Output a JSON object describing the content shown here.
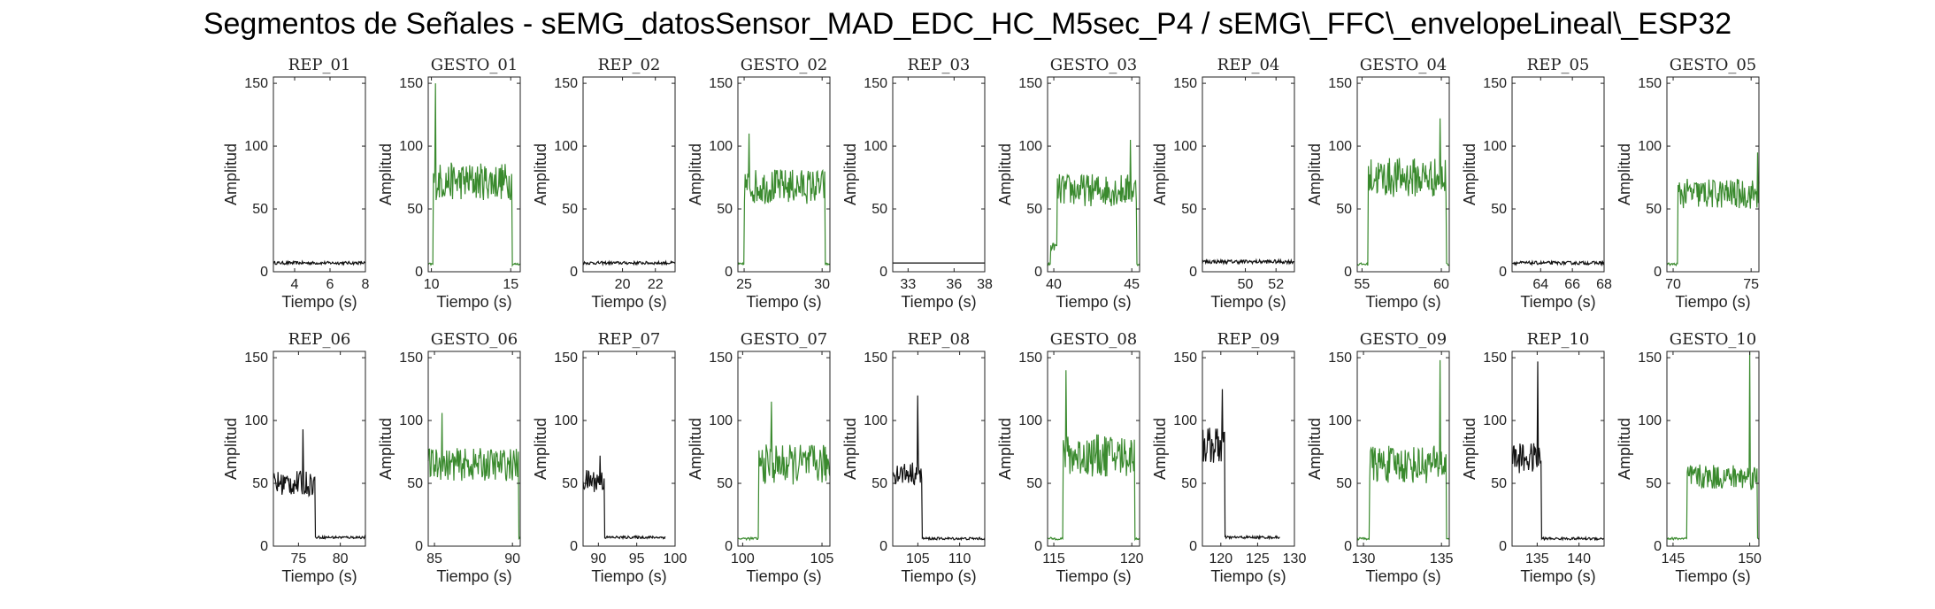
{
  "title": "Segmentos de Señales - sEMG_datosSensor_MAD_EDC_HC_M5sec_P4 / sEMG\\_FFC\\_envelopeLineal\\_ESP32",
  "colors": {
    "rep": "#111111",
    "gesto": "#3a8a2e"
  },
  "chart_data": [
    {
      "type": "line",
      "title": "REP_01",
      "xlabel": "Tiempo (s)",
      "ylabel": "Amplitud",
      "xlim": [
        2.8,
        8
      ],
      "ylim": [
        0,
        155
      ],
      "xticks": [
        4,
        6,
        8
      ],
      "yticks": [
        0,
        50,
        100,
        150
      ],
      "series": [
        {
          "kind": "rep",
          "pattern": "flat",
          "level": 7,
          "noise": 1.2,
          "x": [
            2.8,
            8
          ]
        }
      ]
    },
    {
      "type": "line",
      "title": "GESTO_01",
      "xlabel": "Tiempo (s)",
      "ylabel": "Amplitud",
      "xlim": [
        9.8,
        15.6
      ],
      "ylim": [
        0,
        155
      ],
      "xticks": [
        10,
        15
      ],
      "yticks": [
        0,
        50,
        100,
        150
      ],
      "series": [
        {
          "kind": "gesto",
          "pattern": "burst",
          "x": [
            9.8,
            15.6
          ],
          "t0": 10.1,
          "t1": 15.1,
          "level": 72,
          "noise": 15,
          "peak": [
            10.25,
            150
          ]
        }
      ]
    },
    {
      "type": "line",
      "title": "REP_02",
      "xlabel": "Tiempo (s)",
      "ylabel": "Amplitud",
      "xlim": [
        17.6,
        23.2
      ],
      "ylim": [
        0,
        155
      ],
      "xticks": [
        20,
        22
      ],
      "yticks": [
        0,
        50,
        100,
        150
      ],
      "series": [
        {
          "kind": "rep",
          "pattern": "flat",
          "level": 7,
          "noise": 1.2,
          "x": [
            17.6,
            23.2
          ]
        }
      ]
    },
    {
      "type": "line",
      "title": "GESTO_02",
      "xlabel": "Tiempo (s)",
      "ylabel": "Amplitud",
      "xlim": [
        24.6,
        30.5
      ],
      "ylim": [
        0,
        155
      ],
      "xticks": [
        25,
        30
      ],
      "yticks": [
        0,
        50,
        100,
        150
      ],
      "series": [
        {
          "kind": "gesto",
          "pattern": "burst",
          "x": [
            24.6,
            30.5
          ],
          "t0": 25.0,
          "t1": 30.2,
          "level": 68,
          "noise": 14,
          "peak": [
            25.3,
            110
          ]
        }
      ]
    },
    {
      "type": "line",
      "title": "REP_03",
      "xlabel": "Tiempo (s)",
      "ylabel": "Amplitud",
      "xlim": [
        32,
        38
      ],
      "ylim": [
        0,
        155
      ],
      "xticks": [
        33,
        36,
        38
      ],
      "yticks": [
        0,
        50,
        100,
        150
      ],
      "series": [
        {
          "kind": "rep",
          "pattern": "flat",
          "level": 7,
          "noise": 0,
          "x": [
            32,
            38
          ]
        }
      ]
    },
    {
      "type": "line",
      "title": "GESTO_03",
      "xlabel": "Tiempo (s)",
      "ylabel": "Amplitud",
      "xlim": [
        39.6,
        45.5
      ],
      "ylim": [
        0,
        155
      ],
      "xticks": [
        40,
        45
      ],
      "yticks": [
        0,
        50,
        100,
        150
      ],
      "series": [
        {
          "kind": "gesto",
          "pattern": "burst",
          "x": [
            39.6,
            45.5
          ],
          "t0": 40.2,
          "t1": 45.3,
          "level": 65,
          "noise": 13,
          "peak": [
            44.9,
            105
          ],
          "pre": 20
        }
      ]
    },
    {
      "type": "line",
      "title": "REP_04",
      "xlabel": "Tiempo (s)",
      "ylabel": "Amplitud",
      "xlim": [
        47.2,
        53.2
      ],
      "ylim": [
        0,
        155
      ],
      "xticks": [
        50,
        52
      ],
      "yticks": [
        0,
        50,
        100,
        150
      ],
      "series": [
        {
          "kind": "rep",
          "pattern": "flat",
          "level": 8,
          "noise": 1.5,
          "x": [
            47.2,
            53.2
          ]
        }
      ]
    },
    {
      "type": "line",
      "title": "GESTO_04",
      "xlabel": "Tiempo (s)",
      "ylabel": "Amplitud",
      "xlim": [
        54.7,
        60.5
      ],
      "ylim": [
        0,
        155
      ],
      "xticks": [
        55,
        60
      ],
      "yticks": [
        0,
        50,
        100,
        150
      ],
      "series": [
        {
          "kind": "gesto",
          "pattern": "burst",
          "x": [
            54.7,
            60.5
          ],
          "t0": 55.4,
          "t1": 60.3,
          "level": 75,
          "noise": 16,
          "peak": [
            59.9,
            122
          ]
        }
      ]
    },
    {
      "type": "line",
      "title": "REP_05",
      "xlabel": "Tiempo (s)",
      "ylabel": "Amplitud",
      "xlim": [
        62.2,
        68
      ],
      "ylim": [
        0,
        155
      ],
      "xticks": [
        64,
        66,
        68
      ],
      "yticks": [
        0,
        50,
        100,
        150
      ],
      "series": [
        {
          "kind": "rep",
          "pattern": "flat",
          "level": 7,
          "noise": 1.3,
          "x": [
            62.2,
            68
          ]
        }
      ]
    },
    {
      "type": "line",
      "title": "GESTO_05",
      "xlabel": "Tiempo (s)",
      "ylabel": "Amplitud",
      "xlim": [
        69.6,
        75.5
      ],
      "ylim": [
        0,
        155
      ],
      "xticks": [
        70,
        75
      ],
      "yticks": [
        0,
        50,
        100,
        150
      ],
      "series": [
        {
          "kind": "gesto",
          "pattern": "burst",
          "x": [
            69.6,
            75.5
          ],
          "t0": 70.3,
          "t1": 75.5,
          "level": 62,
          "noise": 12,
          "peak": [
            75.4,
            95
          ]
        }
      ]
    },
    {
      "type": "line",
      "title": "REP_06",
      "xlabel": "Tiempo (s)",
      "ylabel": "Amplitud",
      "xlim": [
        72,
        83
      ],
      "ylim": [
        0,
        155
      ],
      "xticks": [
        75,
        80
      ],
      "yticks": [
        0,
        50,
        100,
        150
      ],
      "series": [
        {
          "kind": "rep",
          "pattern": "decay",
          "x": [
            72,
            83
          ],
          "t1": 77,
          "level": 50,
          "noise": 10,
          "peak": [
            75.5,
            93
          ],
          "tail": 7
        }
      ]
    },
    {
      "type": "line",
      "title": "GESTO_06",
      "xlabel": "Tiempo (s)",
      "ylabel": "Amplitud",
      "xlim": [
        84.6,
        90.5
      ],
      "ylim": [
        0,
        155
      ],
      "xticks": [
        85,
        90
      ],
      "yticks": [
        0,
        50,
        100,
        150
      ],
      "series": [
        {
          "kind": "gesto",
          "pattern": "burst",
          "x": [
            84.6,
            90.5
          ],
          "t0": 84.6,
          "t1": 90.4,
          "level": 65,
          "noise": 13,
          "peak": [
            85.5,
            106
          ]
        }
      ]
    },
    {
      "type": "line",
      "title": "REP_07",
      "xlabel": "Tiempo (s)",
      "ylabel": "Amplitud",
      "xlim": [
        88,
        100
      ],
      "ylim": [
        0,
        155
      ],
      "xticks": [
        90,
        95,
        100
      ],
      "yticks": [
        0,
        50,
        100,
        150
      ],
      "series": [
        {
          "kind": "rep",
          "pattern": "decay",
          "x": [
            88,
            98.7
          ],
          "t1": 90.8,
          "level": 52,
          "noise": 9,
          "peak": [
            90.2,
            72
          ],
          "tail": 7
        }
      ]
    },
    {
      "type": "line",
      "title": "GESTO_07",
      "xlabel": "Tiempo (s)",
      "ylabel": "Amplitud",
      "xlim": [
        99.7,
        105.5
      ],
      "ylim": [
        0,
        155
      ],
      "xticks": [
        100,
        105
      ],
      "yticks": [
        0,
        50,
        100,
        150
      ],
      "series": [
        {
          "kind": "gesto",
          "pattern": "burst",
          "x": [
            99.7,
            105.5
          ],
          "t0": 101.0,
          "t1": 105.5,
          "level": 65,
          "noise": 16,
          "peak": [
            101.8,
            115
          ]
        }
      ]
    },
    {
      "type": "line",
      "title": "REP_08",
      "xlabel": "Tiempo (s)",
      "ylabel": "Amplitud",
      "xlim": [
        102,
        113
      ],
      "ylim": [
        0,
        155
      ],
      "xticks": [
        105,
        110
      ],
      "yticks": [
        0,
        50,
        100,
        150
      ],
      "series": [
        {
          "kind": "rep",
          "pattern": "decay",
          "x": [
            102,
            113
          ],
          "t1": 105.5,
          "level": 58,
          "noise": 9,
          "peak": [
            105.0,
            120
          ],
          "tail": 6
        }
      ]
    },
    {
      "type": "line",
      "title": "GESTO_08",
      "xlabel": "Tiempo (s)",
      "ylabel": "Amplitud",
      "xlim": [
        114.6,
        120.5
      ],
      "ylim": [
        0,
        155
      ],
      "xticks": [
        115,
        120
      ],
      "yticks": [
        0,
        50,
        100,
        150
      ],
      "series": [
        {
          "kind": "gesto",
          "pattern": "burst",
          "x": [
            114.6,
            120.5
          ],
          "t0": 115.6,
          "t1": 120.2,
          "level": 72,
          "noise": 17,
          "peak": [
            115.8,
            140
          ]
        }
      ]
    },
    {
      "type": "line",
      "title": "REP_09",
      "xlabel": "Tiempo (s)",
      "ylabel": "Amplitud",
      "xlim": [
        117.5,
        130
      ],
      "ylim": [
        0,
        155
      ],
      "xticks": [
        120,
        125,
        130
      ],
      "yticks": [
        0,
        50,
        100,
        150
      ],
      "series": [
        {
          "kind": "rep",
          "pattern": "decay",
          "x": [
            117.5,
            128
          ],
          "t1": 120.5,
          "level": 80,
          "noise": 15,
          "peak": [
            120.2,
            125
          ],
          "tail": 7
        }
      ]
    },
    {
      "type": "line",
      "title": "GESTO_09",
      "xlabel": "Tiempo (s)",
      "ylabel": "Amplitud",
      "xlim": [
        129.6,
        135.5
      ],
      "ylim": [
        0,
        155
      ],
      "xticks": [
        130,
        135
      ],
      "yticks": [
        0,
        50,
        100,
        150
      ],
      "series": [
        {
          "kind": "gesto",
          "pattern": "burst",
          "x": [
            129.6,
            135.5
          ],
          "t0": 130.4,
          "t1": 135.3,
          "level": 65,
          "noise": 15,
          "peak": [
            134.9,
            148
          ]
        }
      ]
    },
    {
      "type": "line",
      "title": "REP_10",
      "xlabel": "Tiempo (s)",
      "ylabel": "Amplitud",
      "xlim": [
        132,
        143
      ],
      "ylim": [
        0,
        155
      ],
      "xticks": [
        135,
        140
      ],
      "yticks": [
        0,
        50,
        100,
        150
      ],
      "series": [
        {
          "kind": "rep",
          "pattern": "decay",
          "x": [
            132,
            143
          ],
          "t1": 135.5,
          "level": 70,
          "noise": 12,
          "peak": [
            135.1,
            147
          ],
          "tail": 6
        }
      ]
    },
    {
      "type": "line",
      "title": "GESTO_10",
      "xlabel": "Tiempo (s)",
      "ylabel": "Amplitud",
      "xlim": [
        144.6,
        150.6
      ],
      "ylim": [
        0,
        155
      ],
      "xticks": [
        145,
        150
      ],
      "yticks": [
        0,
        50,
        100,
        150
      ],
      "series": [
        {
          "kind": "gesto",
          "pattern": "burst",
          "x": [
            144.6,
            150.6
          ],
          "t0": 145.9,
          "t1": 150.5,
          "level": 55,
          "noise": 10,
          "peak": [
            150.0,
            155
          ]
        }
      ]
    }
  ]
}
